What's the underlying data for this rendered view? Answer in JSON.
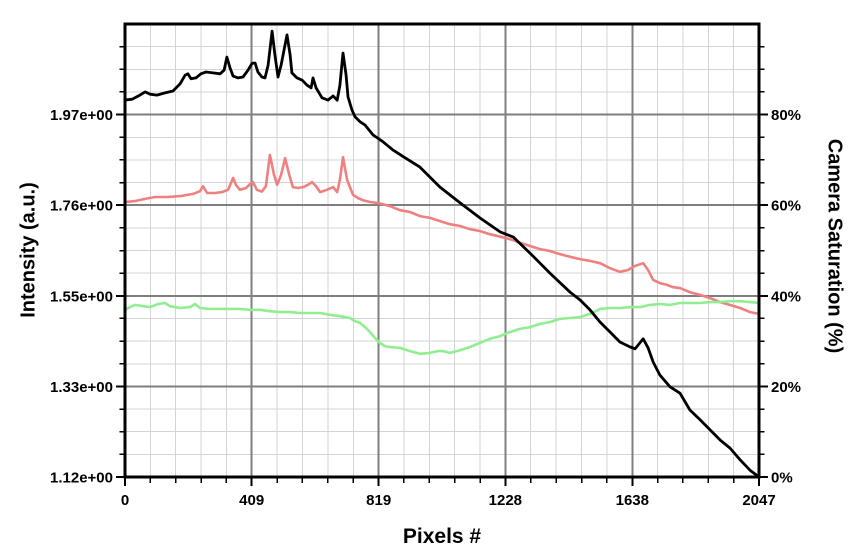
{
  "chart_data": {
    "type": "line",
    "title": "",
    "xlabel": "Pixels #",
    "ylabel_left": "Intensity (a.u.)",
    "ylabel_right": "Camera Saturation (%)",
    "xlim": [
      0,
      2047
    ],
    "ylim_right_pct": [
      0,
      100
    ],
    "ylim_left_intensity": [
      1.12,
      2.18
    ],
    "value_note": "series y values are right-axis percent; intensity = 1.12 + 0.0106 * percent",
    "x_tick_values": [
      0,
      409,
      819,
      1228,
      1638,
      2047
    ],
    "x_tick_labels": [
      "0",
      "409",
      "819",
      "1228",
      "1638",
      "2047"
    ],
    "left_tick_pct": [
      0,
      20,
      40,
      60,
      80
    ],
    "left_tick_labels": [
      "1.12e+00",
      "1.33e+00",
      "1.55e+00",
      "1.76e+00",
      "1.97e+00"
    ],
    "right_tick_pct": [
      0,
      20,
      40,
      60,
      80
    ],
    "right_tick_labels": [
      "0%",
      "20%",
      "40%",
      "60%",
      "80%"
    ],
    "grid": {
      "minor_per_major_x": 5,
      "minor_per_major_y": 4,
      "major_color": "#7f7f7f",
      "minor_color": "#d4d4d4",
      "border_color": "#000000",
      "legend": "none"
    },
    "series": [
      {
        "name": "red-line",
        "color": "#f08080",
        "width": 2.6,
        "points": [
          [
            0,
            60.7
          ],
          [
            32,
            60.9
          ],
          [
            65,
            61.4
          ],
          [
            97,
            61.8
          ],
          [
            139,
            61.8
          ],
          [
            178,
            62.0
          ],
          [
            220,
            62.5
          ],
          [
            242,
            63.1
          ],
          [
            252,
            64.2
          ],
          [
            265,
            62.7
          ],
          [
            291,
            62.7
          ],
          [
            313,
            62.9
          ],
          [
            333,
            63.4
          ],
          [
            349,
            66.0
          ],
          [
            358,
            64.5
          ],
          [
            371,
            63.4
          ],
          [
            391,
            63.8
          ],
          [
            404,
            64.7
          ],
          [
            413,
            65.1
          ],
          [
            426,
            63.4
          ],
          [
            442,
            63.0
          ],
          [
            455,
            64.2
          ],
          [
            468,
            71.1
          ],
          [
            481,
            66.7
          ],
          [
            491,
            64.5
          ],
          [
            504,
            66.7
          ],
          [
            517,
            70.4
          ],
          [
            530,
            66.7
          ],
          [
            542,
            64.0
          ],
          [
            559,
            63.8
          ],
          [
            575,
            64.0
          ],
          [
            591,
            64.5
          ],
          [
            604,
            65.1
          ],
          [
            617,
            64.2
          ],
          [
            630,
            62.9
          ],
          [
            652,
            63.4
          ],
          [
            672,
            64.0
          ],
          [
            685,
            62.9
          ],
          [
            694,
            65.6
          ],
          [
            704,
            70.6
          ],
          [
            717,
            65.6
          ],
          [
            726,
            64.0
          ],
          [
            736,
            62.3
          ],
          [
            752,
            61.6
          ],
          [
            768,
            61.1
          ],
          [
            791,
            60.7
          ],
          [
            817,
            60.5
          ],
          [
            855,
            59.8
          ],
          [
            888,
            58.9
          ],
          [
            920,
            58.5
          ],
          [
            952,
            57.6
          ],
          [
            985,
            57.2
          ],
          [
            1017,
            56.5
          ],
          [
            1049,
            55.8
          ],
          [
            1082,
            55.4
          ],
          [
            1114,
            54.7
          ],
          [
            1146,
            54.3
          ],
          [
            1178,
            53.6
          ],
          [
            1227,
            52.8
          ],
          [
            1253,
            52.3
          ],
          [
            1275,
            51.7
          ],
          [
            1308,
            51.0
          ],
          [
            1340,
            50.3
          ],
          [
            1372,
            49.9
          ],
          [
            1404,
            49.2
          ],
          [
            1437,
            48.6
          ],
          [
            1469,
            48.1
          ],
          [
            1501,
            47.7
          ],
          [
            1534,
            47.2
          ],
          [
            1566,
            46.1
          ],
          [
            1598,
            45.3
          ],
          [
            1624,
            45.7
          ],
          [
            1647,
            46.6
          ],
          [
            1673,
            47.2
          ],
          [
            1689,
            45.7
          ],
          [
            1705,
            43.5
          ],
          [
            1727,
            42.8
          ],
          [
            1750,
            42.4
          ],
          [
            1769,
            41.9
          ],
          [
            1792,
            41.7
          ],
          [
            1824,
            40.8
          ],
          [
            1857,
            40.2
          ],
          [
            1889,
            39.5
          ],
          [
            1921,
            38.6
          ],
          [
            1953,
            38.0
          ],
          [
            1986,
            37.3
          ],
          [
            2018,
            36.4
          ],
          [
            2047,
            36.0
          ]
        ]
      },
      {
        "name": "green-line",
        "color": "#90ee90",
        "width": 2.6,
        "points": [
          [
            0,
            36.9
          ],
          [
            16,
            37.5
          ],
          [
            32,
            38.0
          ],
          [
            58,
            37.7
          ],
          [
            81,
            37.5
          ],
          [
            107,
            38.2
          ],
          [
            129,
            38.4
          ],
          [
            145,
            37.7
          ],
          [
            178,
            37.3
          ],
          [
            210,
            37.5
          ],
          [
            226,
            38.2
          ],
          [
            242,
            37.3
          ],
          [
            274,
            37.1
          ],
          [
            307,
            37.1
          ],
          [
            339,
            37.1
          ],
          [
            371,
            37.1
          ],
          [
            404,
            36.9
          ],
          [
            436,
            36.9
          ],
          [
            468,
            36.6
          ],
          [
            500,
            36.4
          ],
          [
            533,
            36.4
          ],
          [
            565,
            36.2
          ],
          [
            597,
            36.2
          ],
          [
            630,
            36.2
          ],
          [
            662,
            35.8
          ],
          [
            694,
            35.5
          ],
          [
            726,
            35.1
          ],
          [
            743,
            34.4
          ],
          [
            759,
            34.0
          ],
          [
            775,
            33.1
          ],
          [
            791,
            32.0
          ],
          [
            807,
            30.7
          ],
          [
            823,
            29.6
          ],
          [
            839,
            28.9
          ],
          [
            855,
            28.7
          ],
          [
            888,
            28.5
          ],
          [
            920,
            27.8
          ],
          [
            952,
            27.2
          ],
          [
            985,
            27.4
          ],
          [
            1010,
            27.8
          ],
          [
            1027,
            27.8
          ],
          [
            1049,
            27.4
          ],
          [
            1082,
            28.0
          ],
          [
            1114,
            28.7
          ],
          [
            1146,
            29.6
          ],
          [
            1178,
            30.5
          ],
          [
            1211,
            31.1
          ],
          [
            1243,
            32.0
          ],
          [
            1275,
            32.7
          ],
          [
            1308,
            33.1
          ],
          [
            1340,
            33.8
          ],
          [
            1372,
            34.2
          ],
          [
            1404,
            34.9
          ],
          [
            1437,
            35.1
          ],
          [
            1469,
            35.3
          ],
          [
            1501,
            36.0
          ],
          [
            1534,
            37.1
          ],
          [
            1566,
            37.3
          ],
          [
            1598,
            37.3
          ],
          [
            1631,
            37.5
          ],
          [
            1663,
            37.5
          ],
          [
            1695,
            38.0
          ],
          [
            1727,
            38.2
          ],
          [
            1760,
            38.0
          ],
          [
            1792,
            38.4
          ],
          [
            1824,
            38.4
          ],
          [
            1857,
            38.4
          ],
          [
            1889,
            38.6
          ],
          [
            1921,
            38.6
          ],
          [
            1953,
            38.8
          ],
          [
            1986,
            38.8
          ],
          [
            2018,
            38.6
          ],
          [
            2047,
            38.4
          ]
        ]
      },
      {
        "name": "black-line",
        "color": "#000000",
        "width": 2.8,
        "points": [
          [
            0,
            83.2
          ],
          [
            23,
            83.4
          ],
          [
            48,
            84.3
          ],
          [
            65,
            85.0
          ],
          [
            81,
            84.5
          ],
          [
            103,
            84.3
          ],
          [
            129,
            84.8
          ],
          [
            155,
            85.2
          ],
          [
            178,
            86.8
          ],
          [
            194,
            88.7
          ],
          [
            203,
            89.0
          ],
          [
            213,
            87.9
          ],
          [
            229,
            88.1
          ],
          [
            245,
            89.0
          ],
          [
            262,
            89.4
          ],
          [
            284,
            89.2
          ],
          [
            307,
            89.0
          ],
          [
            320,
            89.8
          ],
          [
            329,
            92.7
          ],
          [
            339,
            90.3
          ],
          [
            349,
            88.5
          ],
          [
            365,
            88.1
          ],
          [
            381,
            88.3
          ],
          [
            397,
            89.8
          ],
          [
            410,
            91.3
          ],
          [
            420,
            91.4
          ],
          [
            429,
            89.4
          ],
          [
            442,
            88.3
          ],
          [
            452,
            88.1
          ],
          [
            462,
            90.9
          ],
          [
            475,
            98.4
          ],
          [
            484,
            93.2
          ],
          [
            494,
            88.3
          ],
          [
            504,
            90.9
          ],
          [
            523,
            97.6
          ],
          [
            533,
            93.2
          ],
          [
            539,
            89.2
          ],
          [
            555,
            88.1
          ],
          [
            572,
            87.6
          ],
          [
            588,
            86.5
          ],
          [
            601,
            85.9
          ],
          [
            607,
            88.1
          ],
          [
            617,
            85.9
          ],
          [
            636,
            83.7
          ],
          [
            655,
            83.2
          ],
          [
            672,
            84.1
          ],
          [
            685,
            83.2
          ],
          [
            694,
            86.5
          ],
          [
            704,
            93.6
          ],
          [
            714,
            88.7
          ],
          [
            720,
            83.9
          ],
          [
            733,
            81.0
          ],
          [
            743,
            79.5
          ],
          [
            759,
            78.4
          ],
          [
            775,
            77.7
          ],
          [
            801,
            75.5
          ],
          [
            833,
            74.0
          ],
          [
            865,
            72.2
          ],
          [
            901,
            70.6
          ],
          [
            952,
            68.4
          ],
          [
            1017,
            64.0
          ],
          [
            1082,
            60.5
          ],
          [
            1146,
            57.2
          ],
          [
            1211,
            54.1
          ],
          [
            1253,
            53.0
          ],
          [
            1308,
            49.4
          ],
          [
            1372,
            45.0
          ],
          [
            1437,
            40.8
          ],
          [
            1469,
            39.1
          ],
          [
            1501,
            36.9
          ],
          [
            1534,
            34.2
          ],
          [
            1566,
            32.0
          ],
          [
            1598,
            29.8
          ],
          [
            1631,
            28.7
          ],
          [
            1647,
            28.3
          ],
          [
            1673,
            30.5
          ],
          [
            1689,
            28.5
          ],
          [
            1705,
            25.4
          ],
          [
            1727,
            22.5
          ],
          [
            1760,
            19.9
          ],
          [
            1792,
            18.5
          ],
          [
            1824,
            14.8
          ],
          [
            1857,
            12.6
          ],
          [
            1889,
            10.4
          ],
          [
            1921,
            8.2
          ],
          [
            1953,
            6.4
          ],
          [
            1986,
            3.8
          ],
          [
            2018,
            1.5
          ],
          [
            2047,
            0.0
          ]
        ]
      }
    ]
  }
}
